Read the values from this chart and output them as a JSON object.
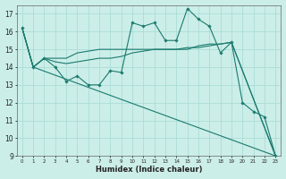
{
  "background_color": "#cceee8",
  "grid_color": "#aaddd8",
  "line_color": "#1a7a6e",
  "xlabel": "Humidex (Indice chaleur)",
  "xlim": [
    -0.5,
    23.5
  ],
  "ylim": [
    9,
    17.5
  ],
  "yticks": [
    9,
    10,
    11,
    12,
    13,
    14,
    15,
    16,
    17
  ],
  "xticks": [
    0,
    1,
    2,
    3,
    4,
    5,
    6,
    7,
    8,
    9,
    10,
    11,
    12,
    13,
    14,
    15,
    16,
    17,
    18,
    19,
    20,
    21,
    22,
    23
  ],
  "line1_x": [
    0,
    1,
    2,
    3,
    4,
    5,
    6,
    7,
    8,
    9,
    10,
    11,
    12,
    13,
    14,
    15,
    16,
    17,
    18,
    19,
    20,
    21,
    22,
    23
  ],
  "line1_y": [
    16.2,
    14.0,
    14.5,
    14.0,
    13.2,
    13.5,
    13.0,
    13.0,
    13.8,
    13.7,
    16.5,
    16.3,
    16.5,
    15.5,
    15.5,
    17.3,
    16.7,
    16.3,
    14.8,
    15.4,
    12.0,
    11.5,
    11.2,
    9.0
  ],
  "line2_x": [
    0,
    1,
    2,
    3,
    4,
    5,
    6,
    7,
    8,
    9,
    10,
    11,
    12,
    13,
    14,
    15,
    16,
    17,
    18,
    19,
    23
  ],
  "line2_y": [
    16.2,
    14.0,
    14.5,
    14.5,
    14.5,
    14.8,
    14.9,
    15.0,
    15.0,
    15.0,
    15.0,
    15.0,
    15.0,
    15.0,
    15.0,
    15.0,
    15.2,
    15.3,
    15.3,
    15.4,
    9.0
  ],
  "line3_x": [
    0,
    1,
    2,
    3,
    4,
    5,
    6,
    7,
    8,
    9,
    10,
    11,
    12,
    13,
    14,
    15,
    16,
    17,
    18,
    19,
    23
  ],
  "line3_y": [
    16.2,
    14.0,
    14.5,
    14.3,
    14.2,
    14.3,
    14.4,
    14.5,
    14.5,
    14.6,
    14.8,
    14.9,
    15.0,
    15.0,
    15.0,
    15.1,
    15.1,
    15.2,
    15.3,
    15.4,
    9.0
  ],
  "line4_x": [
    0,
    1,
    23
  ],
  "line4_y": [
    16.2,
    14.0,
    9.0
  ]
}
